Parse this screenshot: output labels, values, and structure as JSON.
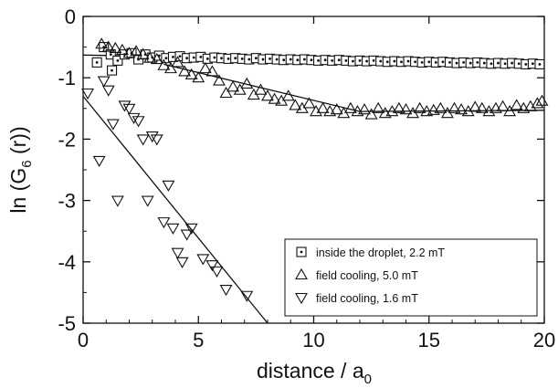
{
  "chart_data": {
    "type": "scatter",
    "xlabel": "distance / a",
    "xlabel_sub": "0",
    "ylabel": "ln (G",
    "ylabel_sub": "6",
    "ylabel_tail": " (r))",
    "xlim": [
      0,
      20
    ],
    "ylim": [
      -5,
      0
    ],
    "xticks": [
      0,
      5,
      10,
      15,
      20
    ],
    "yticks": [
      0,
      -1,
      -2,
      -3,
      -4,
      -5
    ],
    "grid": false,
    "legend_position": "bottom-right",
    "series": [
      {
        "name": "inside the droplet, 2.2 mT",
        "marker": "square-dot",
        "x": [
          0.6,
          0.9,
          1.2,
          1.5,
          1.8,
          2.1,
          2.4,
          2.7,
          3.0,
          3.3,
          3.6,
          3.9,
          4.2,
          4.5,
          4.8,
          5.1,
          5.4,
          5.7,
          6.0,
          6.3,
          6.6,
          6.9,
          7.2,
          7.5,
          7.8,
          8.1,
          8.4,
          8.7,
          9.0,
          9.3,
          9.6,
          9.9,
          10.2,
          10.5,
          10.8,
          11.1,
          11.4,
          11.7,
          12.0,
          12.3,
          12.6,
          12.9,
          13.2,
          13.5,
          13.8,
          14.1,
          14.4,
          14.7,
          15.0,
          15.3,
          15.6,
          15.9,
          16.2,
          16.5,
          16.8,
          17.1,
          17.4,
          17.7,
          18.0,
          18.3,
          18.6,
          18.9,
          19.2,
          19.5,
          19.8,
          1.25
        ],
        "y": [
          -0.75,
          -0.5,
          -0.62,
          -0.72,
          -0.62,
          -0.6,
          -0.7,
          -0.62,
          -0.67,
          -0.64,
          -0.68,
          -0.66,
          -0.65,
          -0.68,
          -0.67,
          -0.66,
          -0.69,
          -0.67,
          -0.68,
          -0.69,
          -0.68,
          -0.69,
          -0.7,
          -0.68,
          -0.7,
          -0.69,
          -0.7,
          -0.71,
          -0.7,
          -0.71,
          -0.7,
          -0.71,
          -0.72,
          -0.71,
          -0.72,
          -0.71,
          -0.72,
          -0.73,
          -0.72,
          -0.73,
          -0.72,
          -0.73,
          -0.74,
          -0.73,
          -0.74,
          -0.73,
          -0.74,
          -0.75,
          -0.74,
          -0.75,
          -0.74,
          -0.75,
          -0.76,
          -0.75,
          -0.76,
          -0.75,
          -0.76,
          -0.77,
          -0.76,
          -0.77,
          -0.76,
          -0.77,
          -0.78,
          -0.77,
          -0.78,
          -0.88
        ],
        "fit": {
          "x": [
            0,
            20
          ],
          "y": [
            -0.63,
            -0.75
          ]
        }
      },
      {
        "name": "field cooling, 5.0 mT",
        "marker": "triangle-up",
        "x": [
          0.8,
          1.1,
          1.4,
          1.7,
          2.0,
          2.3,
          2.6,
          2.9,
          3.2,
          3.5,
          3.8,
          4.1,
          4.4,
          4.7,
          5.0,
          5.3,
          5.6,
          5.9,
          6.2,
          6.5,
          6.8,
          7.1,
          7.4,
          7.7,
          8.0,
          8.3,
          8.6,
          8.9,
          9.2,
          9.5,
          9.8,
          10.1,
          10.4,
          10.7,
          11.0,
          11.3,
          11.6,
          11.9,
          12.2,
          12.5,
          12.8,
          13.1,
          13.4,
          13.7,
          14.0,
          14.3,
          14.6,
          14.9,
          15.2,
          15.5,
          15.8,
          16.1,
          16.4,
          16.7,
          17.0,
          17.3,
          17.6,
          17.9,
          18.2,
          18.5,
          18.8,
          19.1,
          19.4,
          19.7,
          19.9
        ],
        "y": [
          -0.45,
          -0.5,
          -0.52,
          -0.55,
          -0.6,
          -0.57,
          -0.62,
          -0.68,
          -0.7,
          -0.8,
          -0.85,
          -0.75,
          -0.9,
          -0.95,
          -1.0,
          -0.85,
          -0.9,
          -1.05,
          -1.25,
          -1.15,
          -1.2,
          -1.1,
          -1.28,
          -1.2,
          -1.3,
          -1.35,
          -1.38,
          -1.3,
          -1.45,
          -1.5,
          -1.42,
          -1.55,
          -1.5,
          -1.55,
          -1.52,
          -1.58,
          -1.5,
          -1.55,
          -1.52,
          -1.6,
          -1.5,
          -1.58,
          -1.55,
          -1.5,
          -1.52,
          -1.58,
          -1.5,
          -1.55,
          -1.53,
          -1.5,
          -1.58,
          -1.5,
          -1.52,
          -1.55,
          -1.48,
          -1.5,
          -1.55,
          -1.5,
          -1.47,
          -1.55,
          -1.45,
          -1.5,
          -1.47,
          -1.42,
          -1.38
        ],
        "fit": {
          "x": [
            3.5,
            12,
            20
          ],
          "y": [
            -0.78,
            -1.55,
            -1.53
          ]
        }
      },
      {
        "name": "field cooling, 1.6 mT",
        "marker": "triangle-down",
        "x": [
          0.2,
          0.7,
          0.9,
          1.1,
          1.3,
          1.5,
          1.8,
          2.0,
          2.2,
          2.4,
          2.6,
          2.8,
          3.0,
          3.2,
          3.5,
          3.7,
          3.9,
          4.1,
          4.3,
          4.5,
          4.7,
          5.2,
          5.6,
          5.8,
          6.2,
          7.1
        ],
        "y": [
          -1.25,
          -2.35,
          -1.05,
          -1.2,
          -1.75,
          -3.0,
          -1.45,
          -1.5,
          -1.65,
          -1.7,
          -2.0,
          -3.0,
          -1.95,
          -2.0,
          -3.35,
          -2.75,
          -3.45,
          -3.85,
          -4.0,
          -3.55,
          -3.45,
          -3.95,
          -4.05,
          -4.15,
          -4.45,
          -4.55
        ],
        "fit": {
          "x": [
            0,
            8
          ],
          "y": [
            -1.3,
            -5.0
          ]
        }
      }
    ]
  }
}
